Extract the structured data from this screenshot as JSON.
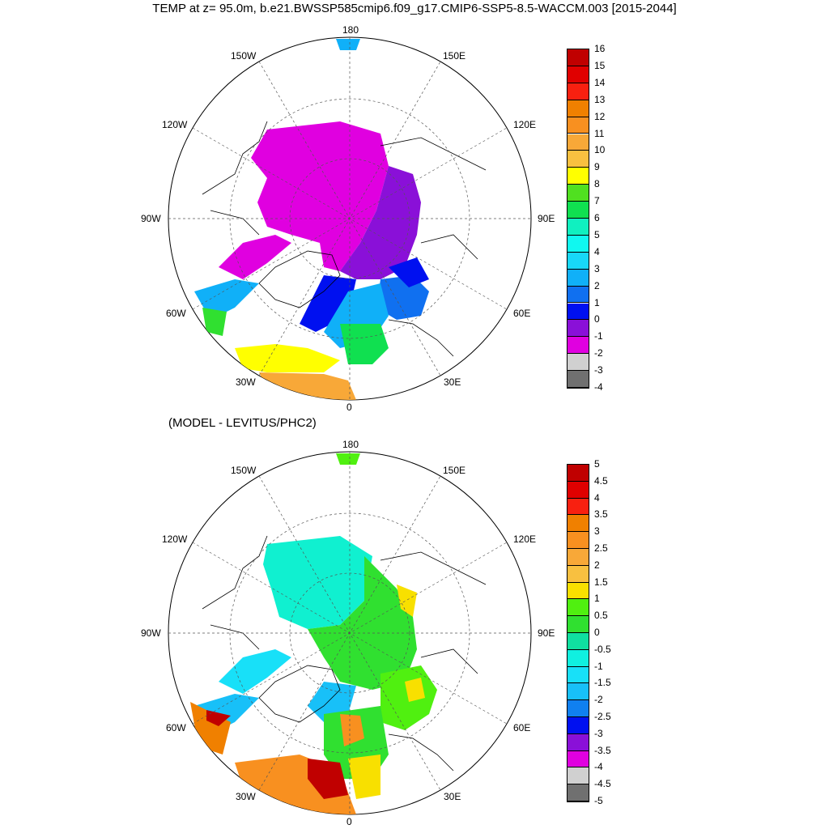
{
  "title": "TEMP at z=  95.0m, b.e21.BWSSP585cmip6.f09_g17.CMIP6-SSP5-8.5-WACCM.003 [2015-2044]",
  "subtitle": "(MODEL - LEVITUS/PHC2)",
  "longitude_labels": [
    "180",
    "150E",
    "120E",
    "90E",
    "60E",
    "30E",
    "0",
    "30W",
    "60W",
    "90W",
    "120W",
    "150W"
  ],
  "colors": {
    "magenta": "#e000e0",
    "purple": "#8a10d8",
    "blue": "#0010f0",
    "cyan": "#10e0f0",
    "green": "#30e030",
    "yellow": "#ffff00",
    "orange": "#f09020",
    "red": "#c00000"
  },
  "chart_data": [
    {
      "type": "heatmap",
      "title": "TEMP at z=  95.0m, b.e21.BWSSP585cmip6.f09_g17.CMIP6-SSP5-8.5-WACCM.003 [2015-2044]",
      "projection": "north polar stereographic",
      "colorbar_labels": [
        "16",
        "15",
        "14",
        "13",
        "12",
        "11",
        "10",
        "9",
        "8",
        "7",
        "6",
        "5",
        "4",
        "3",
        "2",
        "1",
        "0",
        "-1",
        "-2",
        "-3",
        "-4"
      ],
      "colorbar_colors": [
        "#c00000",
        "#e00000",
        "#f82010",
        "#f08000",
        "#f89020",
        "#f8a838",
        "#f8c040",
        "#ffff00",
        "#50e020",
        "#10e050",
        "#10f0c0",
        "#10f8f0",
        "#18d8f8",
        "#10b0f8",
        "#1070f0",
        "#0010f0",
        "#8a10d8",
        "#e000e0",
        "#d0d0d0",
        "#707070"
      ],
      "range": [
        -4,
        16
      ]
    },
    {
      "type": "heatmap",
      "title": "(MODEL - LEVITUS/PHC2)",
      "projection": "north polar stereographic",
      "colorbar_labels": [
        "5",
        "4.5",
        "4",
        "3.5",
        "3",
        "2.5",
        "2",
        "1.5",
        "1",
        "0.5",
        "0",
        "-0.5",
        "-1",
        "-1.5",
        "-2",
        "-2.5",
        "-3",
        "-3.5",
        "-4",
        "-4.5",
        "-5"
      ],
      "colorbar_colors": [
        "#c00000",
        "#e00000",
        "#f82010",
        "#f08000",
        "#f89020",
        "#f8a838",
        "#f8c040",
        "#f8e000",
        "#50f010",
        "#30e030",
        "#10e0a0",
        "#10f0e0",
        "#18e0f8",
        "#18c0f8",
        "#1080f0",
        "#0010f0",
        "#8a10d8",
        "#e000e0",
        "#d0d0d0",
        "#707070"
      ],
      "range": [
        -5,
        5
      ]
    }
  ]
}
